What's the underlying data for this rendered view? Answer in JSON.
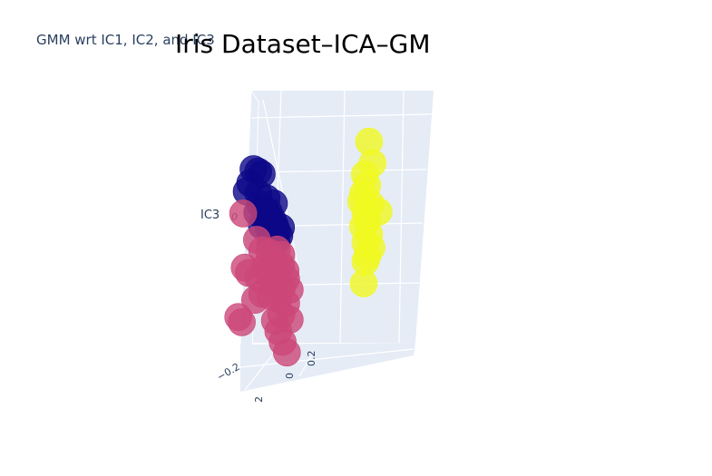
{
  "subtitle": "GMM wrt IC1, IC2, and IC3",
  "chart_data": {
    "type": "scatter",
    "title": "Iris Dataset–ICA–GM",
    "axes": {
      "z_label": "IC3",
      "z_ticks": [
        "0"
      ],
      "y_ticks": [
        "−0.2",
        "0",
        "0.2"
      ],
      "x_ticks": [
        "2"
      ]
    },
    "series": [
      {
        "color": "#0d0887",
        "points": [
          [
            -0.05,
            0.1,
            0.18
          ],
          [
            -0.02,
            0.12,
            0.17
          ],
          [
            0.0,
            0.14,
            0.16
          ],
          [
            -0.08,
            0.1,
            0.13
          ],
          [
            -0.1,
            0.08,
            0.1
          ],
          [
            -0.03,
            0.14,
            0.09
          ],
          [
            0.02,
            0.18,
            0.07
          ],
          [
            -0.02,
            0.15,
            0.05
          ],
          [
            0.01,
            0.17,
            0.03
          ],
          [
            0.04,
            0.18,
            0.02
          ],
          [
            -0.04,
            0.14,
            0.02
          ],
          [
            0.0,
            0.2,
            0.0
          ],
          [
            0.05,
            0.22,
            -0.01
          ],
          [
            0.03,
            0.19,
            -0.02
          ],
          [
            -0.01,
            0.16,
            -0.03
          ],
          [
            0.06,
            0.24,
            -0.03
          ],
          [
            0.02,
            0.21,
            -0.04
          ],
          [
            0.07,
            0.25,
            -0.05
          ],
          [
            0.04,
            0.23,
            -0.06
          ],
          [
            0.08,
            0.27,
            -0.07
          ],
          [
            0.06,
            0.26,
            -0.09
          ],
          [
            0.03,
            0.22,
            -0.1
          ],
          [
            0.05,
            0.24,
            0.05
          ],
          [
            0.09,
            0.28,
            -0.04
          ]
        ]
      },
      {
        "color": "#cc4778",
        "points": [
          [
            -0.12,
            0.06,
            0.02
          ],
          [
            -0.05,
            0.15,
            -0.08
          ],
          [
            -0.02,
            0.18,
            -0.12
          ],
          [
            0.02,
            0.22,
            -0.13
          ],
          [
            0.06,
            0.27,
            -0.12
          ],
          [
            0.08,
            0.3,
            -0.14
          ],
          [
            -0.1,
            0.05,
            -0.18
          ],
          [
            -0.08,
            0.08,
            -0.2
          ],
          [
            0.0,
            0.2,
            -0.18
          ],
          [
            0.04,
            0.25,
            -0.17
          ],
          [
            0.08,
            0.3,
            -0.18
          ],
          [
            0.1,
            0.33,
            -0.2
          ],
          [
            -0.04,
            0.16,
            -0.22
          ],
          [
            0.02,
            0.23,
            -0.22
          ],
          [
            0.06,
            0.28,
            -0.22
          ],
          [
            0.1,
            0.34,
            -0.23
          ],
          [
            0.04,
            0.26,
            -0.25
          ],
          [
            0.08,
            0.31,
            -0.26
          ],
          [
            0.12,
            0.36,
            -0.27
          ],
          [
            -0.06,
            0.14,
            -0.3
          ],
          [
            -0.02,
            0.18,
            -0.28
          ],
          [
            0.02,
            0.24,
            -0.29
          ],
          [
            0.06,
            0.29,
            -0.3
          ],
          [
            0.1,
            0.34,
            -0.32
          ],
          [
            0.08,
            0.3,
            -0.36
          ],
          [
            -0.14,
            0.02,
            -0.36
          ],
          [
            -0.12,
            0.04,
            -0.38
          ],
          [
            0.04,
            0.27,
            -0.38
          ],
          [
            0.12,
            0.36,
            -0.38
          ],
          [
            0.06,
            0.29,
            -0.42
          ],
          [
            0.08,
            0.32,
            -0.46
          ],
          [
            0.1,
            0.35,
            -0.5
          ]
        ]
      },
      {
        "color": "#f0f921",
        "points": [
          [
            0.48,
            0.95,
            0.26
          ],
          [
            0.5,
            0.97,
            0.18
          ],
          [
            0.46,
            0.92,
            0.14
          ],
          [
            0.47,
            0.94,
            0.1
          ],
          [
            0.45,
            0.91,
            0.07
          ],
          [
            0.44,
            0.9,
            0.04
          ],
          [
            0.49,
            0.96,
            0.03
          ],
          [
            0.53,
            1.01,
            0.0
          ],
          [
            0.46,
            0.93,
            0.0
          ],
          [
            0.47,
            0.94,
            -0.03
          ],
          [
            0.45,
            0.91,
            -0.05
          ],
          [
            0.48,
            0.95,
            -0.08
          ],
          [
            0.46,
            0.93,
            -0.11
          ],
          [
            0.49,
            0.97,
            -0.13
          ],
          [
            0.47,
            0.94,
            -0.16
          ],
          [
            0.46,
            0.93,
            -0.18
          ],
          [
            0.45,
            0.92,
            -0.26
          ]
        ]
      }
    ]
  }
}
